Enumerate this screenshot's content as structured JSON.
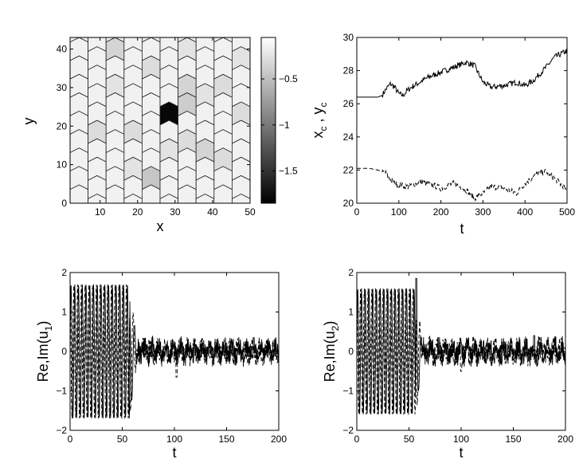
{
  "chart_data": [
    {
      "type": "heatmap",
      "xlabel": "x",
      "ylabel": "y",
      "xlim": [
        2,
        50
      ],
      "ylim": [
        0,
        43
      ],
      "xticks": [
        10,
        20,
        30,
        40,
        50
      ],
      "yticks": [
        0,
        10,
        20,
        30,
        40
      ],
      "tiling": "hexagonal (rhombic) lattice, 10 columns x 9 rows of cells",
      "colormap": "gray",
      "colorbar": {
        "range": [
          -1.85,
          -0.05
        ],
        "ticks": [
          -1.5,
          -1,
          -0.5
        ]
      },
      "background_value": -0.15,
      "cells": [
        {
          "col": 5,
          "row": 4,
          "value": -1.8
        },
        {
          "col": 2,
          "row": 8,
          "value": -0.35
        },
        {
          "col": 6,
          "row": 5,
          "value": -0.4
        },
        {
          "col": 6,
          "row": 6,
          "value": -0.35
        },
        {
          "col": 1,
          "row": 3,
          "value": -0.3
        },
        {
          "col": 4,
          "row": 1,
          "value": -0.45
        },
        {
          "col": 3,
          "row": 3,
          "value": -0.3
        },
        {
          "col": 7,
          "row": 2,
          "value": -0.35
        },
        {
          "col": 8,
          "row": 6,
          "value": -0.3
        },
        {
          "col": 9,
          "row": 7,
          "value": -0.25
        },
        {
          "col": 6,
          "row": 3,
          "value": -0.3
        },
        {
          "col": 8,
          "row": 2,
          "value": -0.3
        },
        {
          "col": 2,
          "row": 6,
          "value": -0.25
        },
        {
          "col": 4,
          "row": 7,
          "value": -0.3
        },
        {
          "col": 5,
          "row": 2,
          "value": -0.25
        },
        {
          "col": 7,
          "row": 5,
          "value": -0.25
        },
        {
          "col": 9,
          "row": 4,
          "value": -0.3
        },
        {
          "col": 3,
          "row": 1,
          "value": -0.25
        },
        {
          "col": 6,
          "row": 8,
          "value": -0.25
        }
      ]
    },
    {
      "type": "line",
      "xlabel": "t",
      "ylabel": "x_c , y_c",
      "ylabel_main": "x",
      "ylabel_sub1": "c",
      "ylabel_mid": " , y",
      "ylabel_sub2": "c",
      "xlim": [
        0,
        500
      ],
      "ylim": [
        20,
        30
      ],
      "xticks": [
        0,
        100,
        200,
        300,
        400,
        500
      ],
      "yticks": [
        20,
        22,
        24,
        26,
        28,
        30
      ],
      "series": [
        {
          "style": "solid",
          "x": [
            0,
            50,
            60,
            70,
            80,
            90,
            100,
            110,
            120,
            130,
            150,
            170,
            200,
            230,
            260,
            280,
            300,
            320,
            350,
            380,
            400,
            420,
            450,
            470,
            500
          ],
          "y": [
            26.4,
            26.4,
            26.5,
            26.9,
            27.2,
            27.0,
            26.6,
            26.5,
            26.8,
            27.0,
            27.3,
            27.6,
            27.9,
            28.2,
            28.5,
            28.3,
            27.3,
            27.0,
            27.1,
            27.3,
            27.1,
            27.4,
            28.2,
            28.8,
            29.2
          ]
        },
        {
          "style": "dashed",
          "x": [
            0,
            30,
            50,
            70,
            80,
            90,
            100,
            120,
            150,
            180,
            200,
            230,
            260,
            280,
            300,
            320,
            350,
            380,
            400,
            430,
            450,
            470,
            500
          ],
          "y": [
            22.1,
            22.1,
            22.0,
            21.8,
            21.4,
            21.2,
            21.1,
            21.0,
            21.3,
            21.1,
            20.9,
            21.2,
            20.8,
            20.3,
            20.6,
            21.0,
            20.9,
            20.6,
            21.2,
            21.8,
            21.9,
            21.5,
            20.8
          ]
        }
      ]
    },
    {
      "type": "line",
      "xlabel": "t",
      "ylabel": "Re,Im(u_1)",
      "ylabel_main": "Re,Im(u",
      "ylabel_sub": "1",
      "ylabel_close": ")",
      "xlim": [
        0,
        200
      ],
      "ylim": [
        -2,
        2
      ],
      "xticks": [
        0,
        50,
        100,
        150,
        200
      ],
      "yticks": [
        -2,
        -1,
        0,
        1,
        2
      ],
      "oscillation": {
        "t_end": 57,
        "amplitude": 1.7,
        "period": 3.6,
        "decay_end": 65
      },
      "noise": {
        "t_start": 65,
        "t_end": 200,
        "amplitude": 0.25
      },
      "spikes": [
        {
          "t": 102,
          "value": -0.65
        },
        {
          "t": 176,
          "value": 0.35
        }
      ],
      "series": [
        {
          "style": "solid",
          "phase": 0
        },
        {
          "style": "dashed",
          "phase": 1.57
        }
      ]
    },
    {
      "type": "line",
      "xlabel": "t",
      "ylabel": "Re,Im(u_2)",
      "ylabel_main": "Re,Im(u",
      "ylabel_sub": "2",
      "ylabel_close": ")",
      "xlim": [
        0,
        200
      ],
      "ylim": [
        -2,
        2
      ],
      "xticks": [
        0,
        50,
        100,
        150,
        200
      ],
      "yticks": [
        -2,
        -1,
        0,
        1,
        2
      ],
      "oscillation": {
        "t_end": 57,
        "amplitude": 1.6,
        "period": 3.6,
        "decay_end": 63
      },
      "noise": {
        "t_start": 60,
        "t_end": 200,
        "amplitude": 0.25
      },
      "spikes": [
        {
          "t": 57,
          "value": 1.85
        },
        {
          "t": 100,
          "value": -0.5
        },
        {
          "t": 170,
          "value": 0.4
        }
      ],
      "series": [
        {
          "style": "solid",
          "phase": 0
        },
        {
          "style": "dashed",
          "phase": 1.57
        }
      ]
    }
  ]
}
